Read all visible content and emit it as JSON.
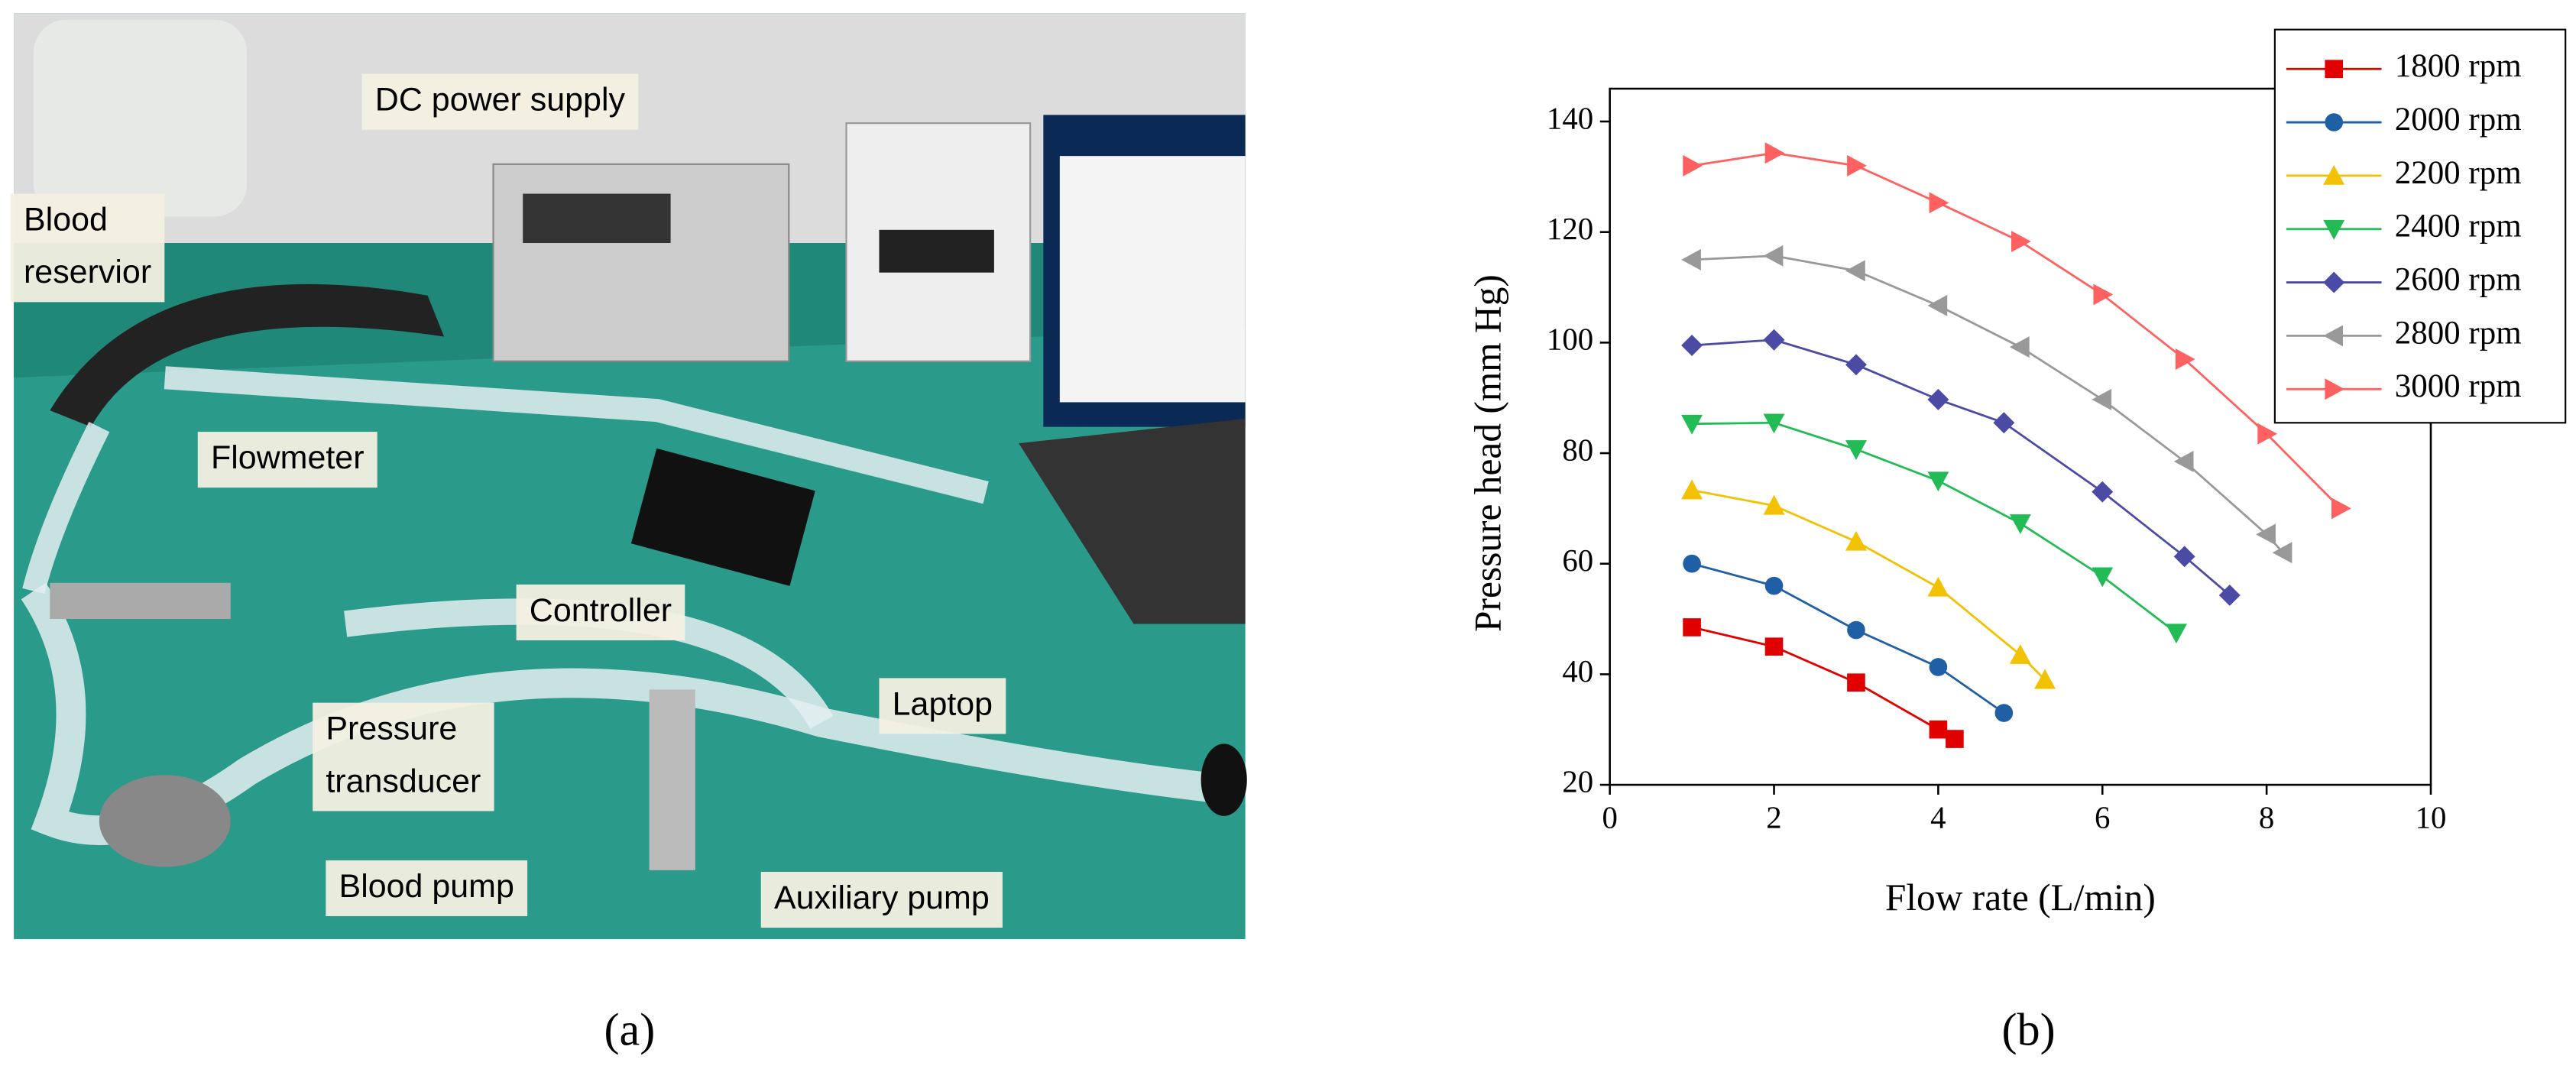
{
  "panel_a": {
    "labels": {
      "blood_reservior": [
        "Blood",
        "reservior"
      ],
      "dc_power_supply": [
        "DC power supply"
      ],
      "flowmeter": [
        "Flowmeter"
      ],
      "controller": [
        "Controller"
      ],
      "pressure_transducer": [
        "Pressure",
        "transducer"
      ],
      "laptop": [
        "Laptop"
      ],
      "blood_pump": [
        "Blood pump"
      ],
      "auxiliary_pump": [
        "Auxiliary pump"
      ]
    },
    "caption": "(a)"
  },
  "panel_b": {
    "caption": "(b)"
  },
  "chart_data": {
    "type": "line",
    "x_label": "Flow rate (L/min)",
    "y_label": "Pressure head (mm Hg)",
    "xlim": [
      0,
      10
    ],
    "xticks": [
      0,
      2,
      4,
      6,
      8,
      10
    ],
    "ylim": [
      20,
      140
    ],
    "yticks": [
      20,
      40,
      60,
      80,
      100,
      120,
      140
    ],
    "legend": "upper right",
    "series": [
      {
        "name": "1800 rpm",
        "color": "#e00000",
        "marker": "square",
        "x": [
          1,
          2,
          3,
          4,
          4.2
        ],
        "values": [
          48.5,
          45,
          38.5,
          30,
          28.3
        ]
      },
      {
        "name": "2000 rpm",
        "color": "#1f5fa6",
        "marker": "circle",
        "x": [
          1,
          2,
          3,
          4,
          4.8
        ],
        "values": [
          60,
          56,
          48,
          41.3,
          33
        ]
      },
      {
        "name": "2200 rpm",
        "color": "#f2c200",
        "marker": "triangle-up",
        "x": [
          1,
          2,
          3,
          4,
          5,
          5.3
        ],
        "values": [
          73.3,
          70.5,
          64,
          55.7,
          43.5,
          39
        ]
      },
      {
        "name": "2400 rpm",
        "color": "#22bb55",
        "marker": "triangle-down",
        "x": [
          1,
          2,
          3,
          4,
          5,
          6,
          6.9
        ],
        "values": [
          85.3,
          85.5,
          80.7,
          75,
          67.3,
          57.7,
          47.5
        ]
      },
      {
        "name": "2600 rpm",
        "color": "#4b4ba6",
        "marker": "diamond",
        "x": [
          1,
          2,
          3,
          4,
          4.8,
          6,
          7,
          7.55
        ],
        "values": [
          99.5,
          100.5,
          96,
          89.7,
          85.5,
          73,
          61.3,
          54.3
        ]
      },
      {
        "name": "2800 rpm",
        "color": "#999999",
        "marker": "triangle-left",
        "x": [
          1,
          2,
          3,
          4,
          5,
          6,
          7,
          8,
          8.2
        ],
        "values": [
          115,
          115.7,
          113,
          106.7,
          99.2,
          89.7,
          78.5,
          65.3,
          62
        ]
      },
      {
        "name": "3000 rpm",
        "color": "#ff6060",
        "marker": "triangle-right",
        "x": [
          1,
          2,
          3,
          4,
          5,
          6,
          7,
          8,
          8.9
        ],
        "values": [
          132,
          134.3,
          132,
          125.3,
          118.3,
          108.7,
          97,
          83.5,
          70
        ]
      }
    ]
  }
}
